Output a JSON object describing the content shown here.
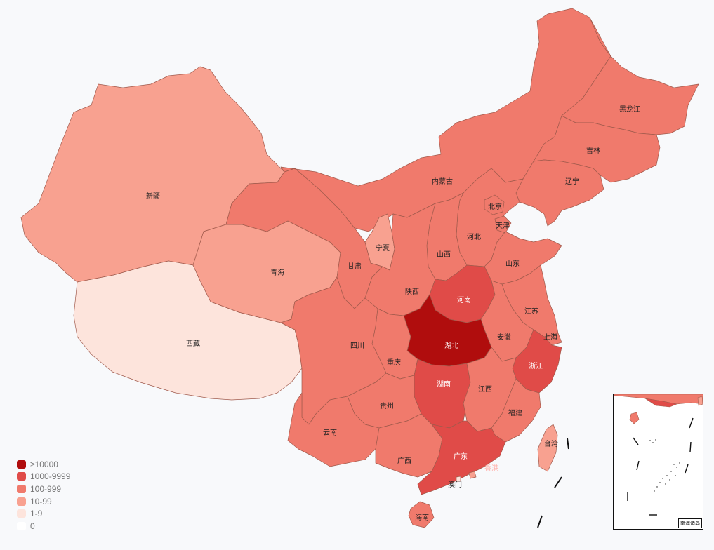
{
  "legend": {
    "items": [
      {
        "label": "≥10000",
        "color": "#b00d0d"
      },
      {
        "label": "1000-9999",
        "color": "#e04b48"
      },
      {
        "label": "100-999",
        "color": "#f07a6c"
      },
      {
        "label": "10-99",
        "color": "#f8a190"
      },
      {
        "label": "1-9",
        "color": "#fde4dc"
      },
      {
        "label": "0",
        "color": "#ffffff"
      }
    ]
  },
  "provinces": [
    {
      "id": "xinjiang",
      "name": "新疆",
      "bucket": "10-99"
    },
    {
      "id": "xizang",
      "name": "西藏",
      "bucket": "1-9"
    },
    {
      "id": "qinghai",
      "name": "青海",
      "bucket": "10-99"
    },
    {
      "id": "gansu",
      "name": "甘肃",
      "bucket": "100-999"
    },
    {
      "id": "neimenggu",
      "name": "内蒙古",
      "bucket": "100-999"
    },
    {
      "id": "heilongjiang",
      "name": "黑龙江",
      "bucket": "100-999"
    },
    {
      "id": "jilin",
      "name": "吉林",
      "bucket": "100-999"
    },
    {
      "id": "liaoning",
      "name": "辽宁",
      "bucket": "100-999"
    },
    {
      "id": "beijing",
      "name": "北京",
      "bucket": "100-999"
    },
    {
      "id": "tianjin",
      "name": "天津",
      "bucket": "100-999"
    },
    {
      "id": "hebei",
      "name": "河北",
      "bucket": "100-999"
    },
    {
      "id": "ningxia",
      "name": "宁夏",
      "bucket": "10-99"
    },
    {
      "id": "shanxi",
      "name": "山西",
      "bucket": "100-999"
    },
    {
      "id": "shandong",
      "name": "山东",
      "bucket": "100-999"
    },
    {
      "id": "shaanxi",
      "name": "陕西",
      "bucket": "100-999"
    },
    {
      "id": "henan",
      "name": "河南",
      "bucket": "1000-9999"
    },
    {
      "id": "jiangsu",
      "name": "江苏",
      "bucket": "100-999"
    },
    {
      "id": "anhui",
      "name": "安徽",
      "bucket": "100-999"
    },
    {
      "id": "shanghai",
      "name": "上海",
      "bucket": "100-999"
    },
    {
      "id": "hubei",
      "name": "湖北",
      "bucket": "≥10000"
    },
    {
      "id": "sichuan",
      "name": "四川",
      "bucket": "100-999"
    },
    {
      "id": "chongqing",
      "name": "重庆",
      "bucket": "100-999"
    },
    {
      "id": "zhejiang",
      "name": "浙江",
      "bucket": "1000-9999"
    },
    {
      "id": "hunan",
      "name": "湖南",
      "bucket": "1000-9999"
    },
    {
      "id": "jiangxi",
      "name": "江西",
      "bucket": "100-999"
    },
    {
      "id": "guizhou",
      "name": "贵州",
      "bucket": "100-999"
    },
    {
      "id": "fujian",
      "name": "福建",
      "bucket": "100-999"
    },
    {
      "id": "yunnan",
      "name": "云南",
      "bucket": "100-999"
    },
    {
      "id": "guangxi",
      "name": "广西",
      "bucket": "100-999"
    },
    {
      "id": "guangdong",
      "name": "广东",
      "bucket": "1000-9999"
    },
    {
      "id": "taiwan",
      "name": "台湾",
      "bucket": "10-99"
    },
    {
      "id": "xianggang",
      "name": "香港",
      "bucket": "10-99"
    },
    {
      "id": "aomen",
      "name": "澳门",
      "bucket": "1-9"
    },
    {
      "id": "hainan",
      "name": "海南",
      "bucket": "100-999"
    }
  ],
  "inset": {
    "label": "南海诸岛"
  }
}
